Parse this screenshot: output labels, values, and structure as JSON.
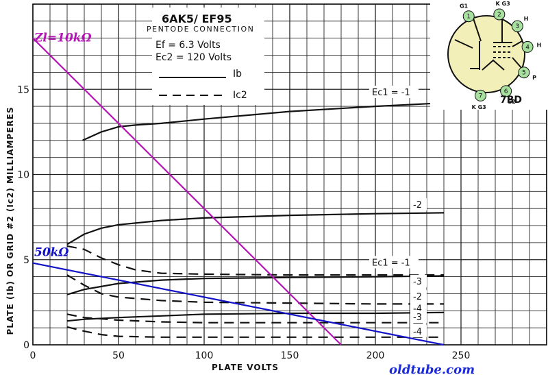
{
  "chart_data": {
    "type": "line",
    "title": "6AK5/ EF95",
    "subtitle": "PENTODE CONNECTION",
    "conditions": [
      "Ef = 6.3 Volts",
      "Ec2 = 120 Volts"
    ],
    "xlabel": "PLATE VOLTS",
    "ylabel": "PLATE (Ib) OR GRID #2 (Ic2) MILLIAMPERES",
    "xlim": [
      0,
      300
    ],
    "ylim": [
      0,
      20
    ],
    "xticks": [
      0,
      50,
      100,
      150,
      200,
      250
    ],
    "yticks": [
      0,
      5,
      10,
      15
    ],
    "grid": true,
    "legend": [
      {
        "label": "Ib",
        "style": "solid"
      },
      {
        "label": "Ic2",
        "style": "dashed"
      }
    ],
    "ib_curve_label": "Ec1 = -1",
    "ic2_curve_label": "Ec1 = -1",
    "series": [
      {
        "label": "Ec1 = -1",
        "style": "solid",
        "x": [
          29,
          40,
          50,
          60,
          75,
          100,
          150,
          200,
          240
        ],
        "y": [
          12.0,
          12.5,
          12.8,
          12.9,
          13.0,
          13.25,
          13.7,
          14.0,
          14.2
        ]
      },
      {
        "label": "-2",
        "style": "solid",
        "x": [
          20,
          30,
          40,
          50,
          75,
          100,
          150,
          200,
          240
        ],
        "y": [
          5.9,
          6.5,
          6.85,
          7.05,
          7.3,
          7.45,
          7.6,
          7.7,
          7.75
        ]
      },
      {
        "label": "-3",
        "style": "solid",
        "x": [
          20,
          30,
          50,
          75,
          100,
          150,
          200,
          240
        ],
        "y": [
          2.95,
          3.25,
          3.6,
          3.8,
          3.9,
          3.95,
          4.0,
          4.05
        ]
      },
      {
        "label": "-4",
        "style": "solid",
        "x": [
          20,
          30,
          50,
          75,
          100,
          150,
          200,
          240
        ],
        "y": [
          1.4,
          1.5,
          1.6,
          1.7,
          1.8,
          1.85,
          1.85,
          1.9
        ]
      },
      {
        "label": "Ec1 = -1",
        "style": "dashed",
        "x": [
          20,
          30,
          40,
          50,
          60,
          75,
          100,
          150,
          200,
          240
        ],
        "y": [
          5.8,
          5.6,
          5.1,
          4.7,
          4.4,
          4.2,
          4.15,
          4.1,
          4.1,
          4.1
        ]
      },
      {
        "label": "-2",
        "style": "dashed",
        "x": [
          20,
          30,
          40,
          50,
          75,
          100,
          150,
          200,
          240
        ],
        "y": [
          4.1,
          3.5,
          3.0,
          2.8,
          2.6,
          2.5,
          2.45,
          2.4,
          2.4
        ]
      },
      {
        "label": "-3",
        "style": "dashed",
        "x": [
          20,
          30,
          50,
          75,
          100,
          150,
          200,
          240
        ],
        "y": [
          1.8,
          1.6,
          1.45,
          1.35,
          1.3,
          1.3,
          1.3,
          1.3
        ]
      },
      {
        "label": "-4",
        "style": "dashed",
        "x": [
          20,
          30,
          40,
          50,
          75,
          100,
          150,
          200,
          240
        ],
        "y": [
          1.05,
          0.8,
          0.6,
          0.5,
          0.45,
          0.45,
          0.45,
          0.45,
          0.45
        ]
      }
    ],
    "load_lines": [
      {
        "label": "Zl=10kΩ",
        "color": "#b414b4",
        "x": [
          0,
          180
        ],
        "y": [
          18.0,
          0
        ]
      },
      {
        "label": "50kΩ",
        "color": "#1212c8",
        "x": [
          0,
          240
        ],
        "y": [
          4.8,
          0
        ]
      }
    ],
    "curve_labels": [
      {
        "text": "-2",
        "x": 222,
        "y": 8.05
      },
      {
        "text": "-3",
        "x": 222,
        "y": 3.55
      },
      {
        "text": "-2",
        "x": 222,
        "y": 2.65
      },
      {
        "text": "-4",
        "x": 222,
        "y": 1.95
      },
      {
        "text": "-3",
        "x": 222,
        "y": 1.45
      },
      {
        "text": "-4",
        "x": 222,
        "y": 0.6
      }
    ]
  },
  "base_diagram": {
    "name": "7BD",
    "pins": [
      {
        "num": "1",
        "label": "G1"
      },
      {
        "num": "2",
        "label": "K G3"
      },
      {
        "num": "3",
        "label": "H"
      },
      {
        "num": "4",
        "label": "H"
      },
      {
        "num": "5",
        "label": "P"
      },
      {
        "num": "6",
        "label": "G2"
      },
      {
        "num": "7",
        "label": "K G3"
      }
    ],
    "pin_color": "#a8e0a0",
    "envelope_color": "#f2f0b8"
  },
  "watermark": "oldtube.com"
}
